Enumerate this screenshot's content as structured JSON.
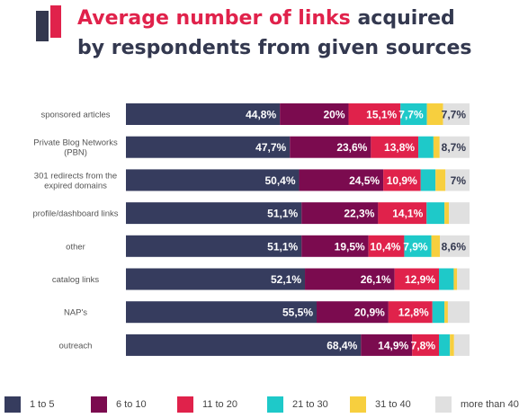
{
  "title": {
    "highlight": "Average number of links",
    "line1_rest": " acquired",
    "line2": "by respondents from given sources"
  },
  "colors": {
    "logo_dark": "#33384f",
    "logo_accent": "#e0224b",
    "title_text": "#33384f",
    "title_highlight": "#e0224b"
  },
  "chart_data": {
    "type": "bar",
    "orientation": "horizontal",
    "stacked": true,
    "percent_stacked": true,
    "grid": false,
    "legend_position": "bottom",
    "xlim": [
      0,
      100
    ],
    "categories": [
      "sponsored articles",
      "Private Blog Networks (PBN)",
      "301 redirects from the expired domains",
      "profile/dashboard links",
      "other",
      "catalog links",
      "NAP's",
      "outreach"
    ],
    "series": [
      {
        "name": "1 to 5",
        "color": "#363c5e",
        "values": [
          44.8,
          47.7,
          50.4,
          51.1,
          51.1,
          52.1,
          55.5,
          68.4
        ],
        "labels": [
          "44,8%",
          "47,7%",
          "50,4%",
          "51,1%",
          "51,1%",
          "52,1%",
          "55,5%",
          "68,4%"
        ]
      },
      {
        "name": "6 to 10",
        "color": "#7b0b4f",
        "values": [
          20,
          23.6,
          24.5,
          22.3,
          19.5,
          26.1,
          20.9,
          14.9
        ],
        "labels": [
          "20%",
          "23,6%",
          "24,5%",
          "22,3%",
          "19,5%",
          "26,1%",
          "20,9%",
          "14,9%"
        ]
      },
      {
        "name": "11 to 20",
        "color": "#e0224b",
        "values": [
          15.1,
          13.8,
          10.9,
          14.1,
          10.4,
          12.9,
          12.8,
          7.8
        ],
        "labels": [
          "15,1%",
          "13,8%",
          "10,9%",
          "14,1%",
          "10,4%",
          "12,9%",
          "12,8%",
          "7,8%"
        ]
      },
      {
        "name": "21 to 30",
        "color": "#1ec9c9",
        "values": [
          7.7,
          4.4,
          4.3,
          5.2,
          7.9,
          4.3,
          3.5,
          3.2
        ],
        "labels": [
          "7,7%",
          "",
          "",
          "",
          "7,9%",
          "",
          "",
          ""
        ]
      },
      {
        "name": "31 to 40",
        "color": "#f7cf3e",
        "values": [
          4.7,
          1.8,
          2.9,
          1.3,
          2.5,
          1.0,
          1.0,
          1.2
        ],
        "labels": [
          "",
          "",
          "",
          "",
          "",
          "",
          "",
          ""
        ]
      },
      {
        "name": "more than 40",
        "color": "#e0e0e0",
        "values": [
          7.7,
          8.7,
          7.0,
          6.0,
          8.6,
          3.6,
          6.3,
          4.5
        ],
        "labels": [
          "7,7%",
          "8,7%",
          "7%",
          "",
          "8,6%",
          "",
          "",
          ""
        ]
      }
    ]
  }
}
